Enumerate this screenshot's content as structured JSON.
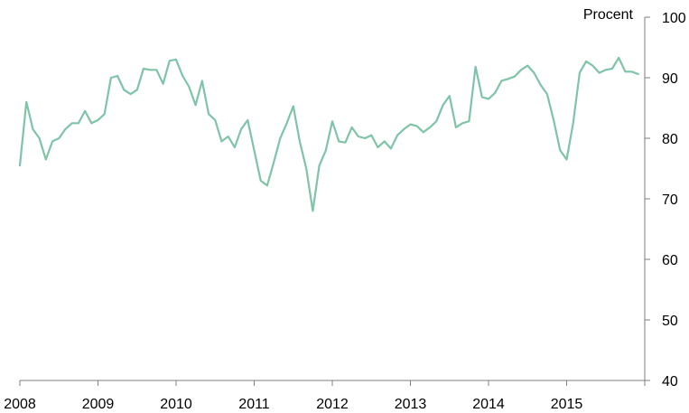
{
  "chart_data": {
    "type": "line",
    "title": "",
    "xlabel": "",
    "ylabel": "Procent",
    "ylim": [
      40,
      100
    ],
    "yticks": [
      40,
      50,
      60,
      70,
      80,
      90,
      100
    ],
    "xlim": [
      2008,
      2016
    ],
    "xticks": [
      2008,
      2009,
      2010,
      2011,
      2012,
      2013,
      2014,
      2015
    ],
    "y_axis_side": "right",
    "grid": false,
    "legend": "none",
    "line_color": "#7fc4a8",
    "series": [
      {
        "x": [
          2008.0,
          2008.083,
          2008.167,
          2008.25,
          2008.333,
          2008.417,
          2008.5,
          2008.583,
          2008.667,
          2008.75,
          2008.833,
          2008.917,
          2009.0,
          2009.083,
          2009.167,
          2009.25,
          2009.333,
          2009.417,
          2009.5,
          2009.583,
          2009.667,
          2009.75,
          2009.833,
          2009.917,
          2010.0,
          2010.083,
          2010.167,
          2010.25,
          2010.333,
          2010.417,
          2010.5,
          2010.583,
          2010.667,
          2010.75,
          2010.833,
          2010.917,
          2011.0,
          2011.083,
          2011.167,
          2011.25,
          2011.333,
          2011.417,
          2011.5,
          2011.583,
          2011.667,
          2011.75,
          2011.833,
          2011.917,
          2012.0,
          2012.083,
          2012.167,
          2012.25,
          2012.333,
          2012.417,
          2012.5,
          2012.583,
          2012.667,
          2012.75,
          2012.833,
          2012.917,
          2013.0,
          2013.083,
          2013.167,
          2013.25,
          2013.333,
          2013.417,
          2013.5,
          2013.583,
          2013.667,
          2013.75,
          2013.833,
          2013.917,
          2014.0,
          2014.083,
          2014.167,
          2014.25,
          2014.333,
          2014.417,
          2014.5,
          2014.583,
          2014.667,
          2014.75,
          2014.833,
          2014.917,
          2015.0,
          2015.083,
          2015.167,
          2015.25,
          2015.333,
          2015.417,
          2015.5,
          2015.583,
          2015.667,
          2015.75,
          2015.833,
          2015.917
        ],
        "values": [
          75.5,
          86.0,
          81.5,
          80.0,
          76.5,
          79.5,
          80.0,
          81.5,
          82.5,
          82.5,
          84.5,
          82.5,
          83.0,
          84.0,
          90.0,
          90.3,
          88.0,
          87.3,
          88.0,
          91.5,
          91.3,
          91.3,
          89.0,
          92.8,
          93.0,
          90.3,
          88.5,
          85.5,
          89.5,
          84.0,
          83.0,
          79.5,
          80.3,
          78.5,
          81.5,
          83.0,
          78.0,
          73.0,
          72.2,
          76.0,
          80.0,
          82.5,
          85.3,
          79.5,
          75.0,
          68.0,
          75.5,
          78.0,
          82.8,
          79.5,
          79.3,
          81.8,
          80.3,
          80.0,
          80.5,
          78.5,
          79.5,
          78.3,
          80.5,
          81.5,
          82.3,
          82.0,
          81.0,
          81.8,
          82.8,
          85.5,
          87.0,
          81.8,
          82.5,
          82.8,
          91.8,
          86.8,
          86.5,
          87.5,
          89.5,
          89.8,
          90.2,
          91.3,
          92.0,
          90.8,
          88.8,
          87.3,
          83.0,
          78.0,
          76.5,
          82.5,
          90.8,
          92.7,
          92.0,
          90.8,
          91.3,
          91.5,
          93.3,
          91.0,
          91.0,
          90.6
        ]
      }
    ]
  }
}
